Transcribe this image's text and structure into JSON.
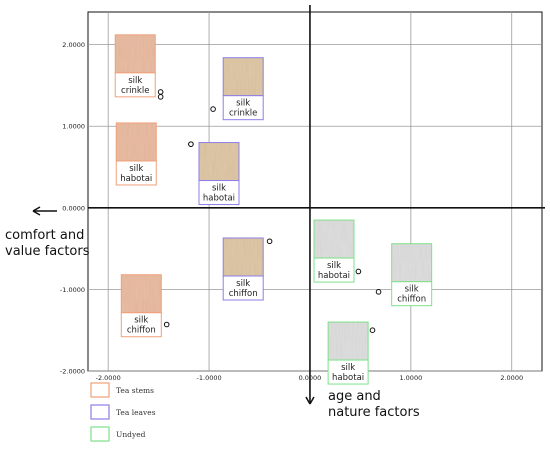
{
  "chart_data": {
    "type": "scatter",
    "title": "",
    "xlim": [
      -2.2,
      2.3
    ],
    "ylim": [
      -2.0,
      2.4
    ],
    "x_ticks": [
      {
        "value": -2.0,
        "label": "-2.0000"
      },
      {
        "value": -1.0,
        "label": "-1.0000"
      },
      {
        "value": 0.0,
        "label": "0.0000"
      },
      {
        "value": 1.0,
        "label": "1.0000"
      },
      {
        "value": 2.0,
        "label": "2.0000"
      }
    ],
    "y_ticks": [
      {
        "value": 2.0,
        "label": "2.0000"
      },
      {
        "value": 1.0,
        "label": "1.0000"
      },
      {
        "value": 0.0,
        "label": "0.0000"
      },
      {
        "value": -1.0,
        "label": "-1.0000"
      },
      {
        "value": -2.0,
        "label": "-2.0000"
      }
    ],
    "grid": true,
    "axis_labels": {
      "left": [
        "comfort and",
        "value factors"
      ],
      "down": [
        "age and",
        "nature factors"
      ]
    },
    "legend_position": "bottom-left",
    "series": [
      {
        "name": "Tea stems",
        "color": "#f0a07a",
        "fabric_fill": "#e8b89c"
      },
      {
        "name": "Tea leaves",
        "color": "#8d7fe6",
        "fabric_fill": "#ddc4a0"
      },
      {
        "name": "Undyed",
        "color": "#7fe08a",
        "fabric_fill": "#dcdcdc"
      }
    ],
    "points": [
      {
        "series": 0,
        "x": -1.48,
        "y": 1.42,
        "label": [
          "silk",
          "crinkle"
        ],
        "swatch": {
          "x": -1.93,
          "y": 2.12
        }
      },
      {
        "series": 0,
        "x": -1.48,
        "y": 1.36
      },
      {
        "series": 0,
        "x": -1.18,
        "y": 0.78,
        "label": [
          "silk",
          "habotai"
        ],
        "swatch": {
          "x": -1.92,
          "y": 1.04
        }
      },
      {
        "series": 0,
        "x": -1.42,
        "y": -1.43,
        "label": [
          "silk",
          "chiffon"
        ],
        "swatch": {
          "x": -1.87,
          "y": -0.82
        }
      },
      {
        "series": 1,
        "x": -0.96,
        "y": 1.21,
        "label": [
          "silk",
          "crinkle"
        ],
        "swatch": {
          "x": -0.86,
          "y": 1.84
        }
      },
      {
        "series": 1,
        "x": -1.18,
        "y": 0.78,
        "label": [
          "silk",
          "habotai"
        ],
        "swatch": {
          "x": -1.1,
          "y": 0.8
        }
      },
      {
        "series": 1,
        "x": -0.4,
        "y": -0.41,
        "label": [
          "silk",
          "chiffon"
        ],
        "swatch": {
          "x": -0.86,
          "y": -0.37
        }
      },
      {
        "series": 2,
        "x": 0.48,
        "y": -0.78,
        "label": [
          "silk",
          "habotai"
        ],
        "swatch": {
          "x": 0.04,
          "y": -0.15
        }
      },
      {
        "series": 2,
        "x": 0.68,
        "y": -1.03,
        "label": [
          "silk",
          "chiffon"
        ],
        "swatch": {
          "x": 0.81,
          "y": -0.44
        }
      },
      {
        "series": 2,
        "x": 0.62,
        "y": -1.5,
        "label": [
          "silk",
          "habotai"
        ],
        "swatch": {
          "x": 0.18,
          "y": -1.4
        }
      }
    ]
  }
}
